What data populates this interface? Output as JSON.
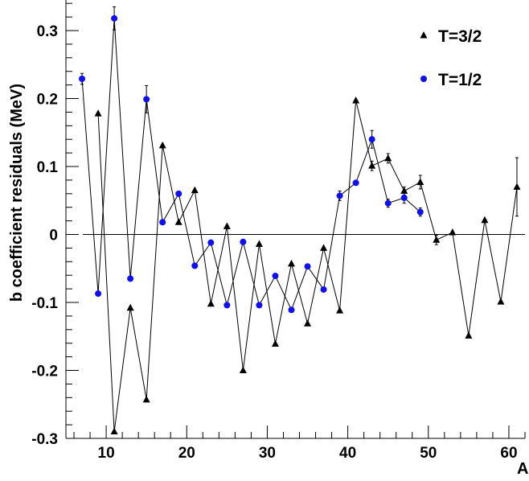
{
  "chart_data": {
    "type": "scatter",
    "xlabel": "A",
    "ylabel": "b coefficient residuals (MeV)",
    "xlim": [
      5,
      62
    ],
    "ylim": [
      -0.3,
      0.345
    ],
    "x_ticks": [
      10,
      20,
      30,
      40,
      50,
      60
    ],
    "y_ticks": [
      -0.3,
      -0.2,
      -0.1,
      0,
      0.1,
      0.2,
      0.3
    ],
    "y_tick_labels": [
      "-0.3",
      "-0.2",
      "-0.1",
      "0",
      "0.1",
      "0.2",
      "0.3"
    ],
    "reference_line_y": 0,
    "legend_position": "top-right",
    "series": [
      {
        "name": "T=3/2",
        "marker": "triangle",
        "color": "#000000",
        "points": [
          {
            "x": 9,
            "y": 0.178
          },
          {
            "x": 11,
            "y": -0.29
          },
          {
            "x": 13,
            "y": -0.108
          },
          {
            "x": 15,
            "y": -0.243
          },
          {
            "x": 17,
            "y": 0.131
          },
          {
            "x": 19,
            "y": 0.018
          },
          {
            "x": 21,
            "y": 0.065
          },
          {
            "x": 23,
            "y": -0.102
          },
          {
            "x": 25,
            "y": 0.012
          },
          {
            "x": 27,
            "y": -0.2
          },
          {
            "x": 29,
            "y": -0.014
          },
          {
            "x": 31,
            "y": -0.161
          },
          {
            "x": 33,
            "y": -0.043
          },
          {
            "x": 35,
            "y": -0.131
          },
          {
            "x": 37,
            "y": -0.02
          },
          {
            "x": 39,
            "y": -0.112
          },
          {
            "x": 41,
            "y": 0.197
          },
          {
            "x": 43,
            "y": 0.101,
            "err": 0.007
          },
          {
            "x": 45,
            "y": 0.112,
            "err": 0.007
          },
          {
            "x": 47,
            "y": 0.064,
            "err": 0.006
          },
          {
            "x": 49,
            "y": 0.077,
            "err": 0.01
          },
          {
            "x": 51,
            "y": -0.008,
            "err": 0.007
          },
          {
            "x": 53,
            "y": 0.003
          },
          {
            "x": 55,
            "y": -0.149
          },
          {
            "x": 57,
            "y": 0.021
          },
          {
            "x": 59,
            "y": -0.099
          },
          {
            "x": 61,
            "y": 0.07,
            "err": 0.043
          }
        ]
      },
      {
        "name": "T=1/2",
        "marker": "circle",
        "color": "#1010ee",
        "points": [
          {
            "x": 7,
            "y": 0.229,
            "err": 0.008
          },
          {
            "x": 9,
            "y": -0.087
          },
          {
            "x": 11,
            "y": 0.318,
            "err": 0.017
          },
          {
            "x": 13,
            "y": -0.065
          },
          {
            "x": 15,
            "y": 0.199,
            "err": 0.02
          },
          {
            "x": 17,
            "y": 0.018
          },
          {
            "x": 19,
            "y": 0.06
          },
          {
            "x": 21,
            "y": -0.046
          },
          {
            "x": 23,
            "y": -0.012
          },
          {
            "x": 25,
            "y": -0.104
          },
          {
            "x": 27,
            "y": -0.011
          },
          {
            "x": 29,
            "y": -0.104
          },
          {
            "x": 31,
            "y": -0.061
          },
          {
            "x": 33,
            "y": -0.111
          },
          {
            "x": 35,
            "y": -0.047
          },
          {
            "x": 37,
            "y": -0.081
          },
          {
            "x": 39,
            "y": 0.057,
            "err": 0.007
          },
          {
            "x": 41,
            "y": 0.076
          },
          {
            "x": 43,
            "y": 0.14,
            "err": 0.013
          },
          {
            "x": 45,
            "y": 0.046,
            "err": 0.006
          },
          {
            "x": 47,
            "y": 0.054,
            "err": 0.008
          },
          {
            "x": 49,
            "y": 0.033,
            "err": 0.006
          }
        ]
      }
    ]
  }
}
